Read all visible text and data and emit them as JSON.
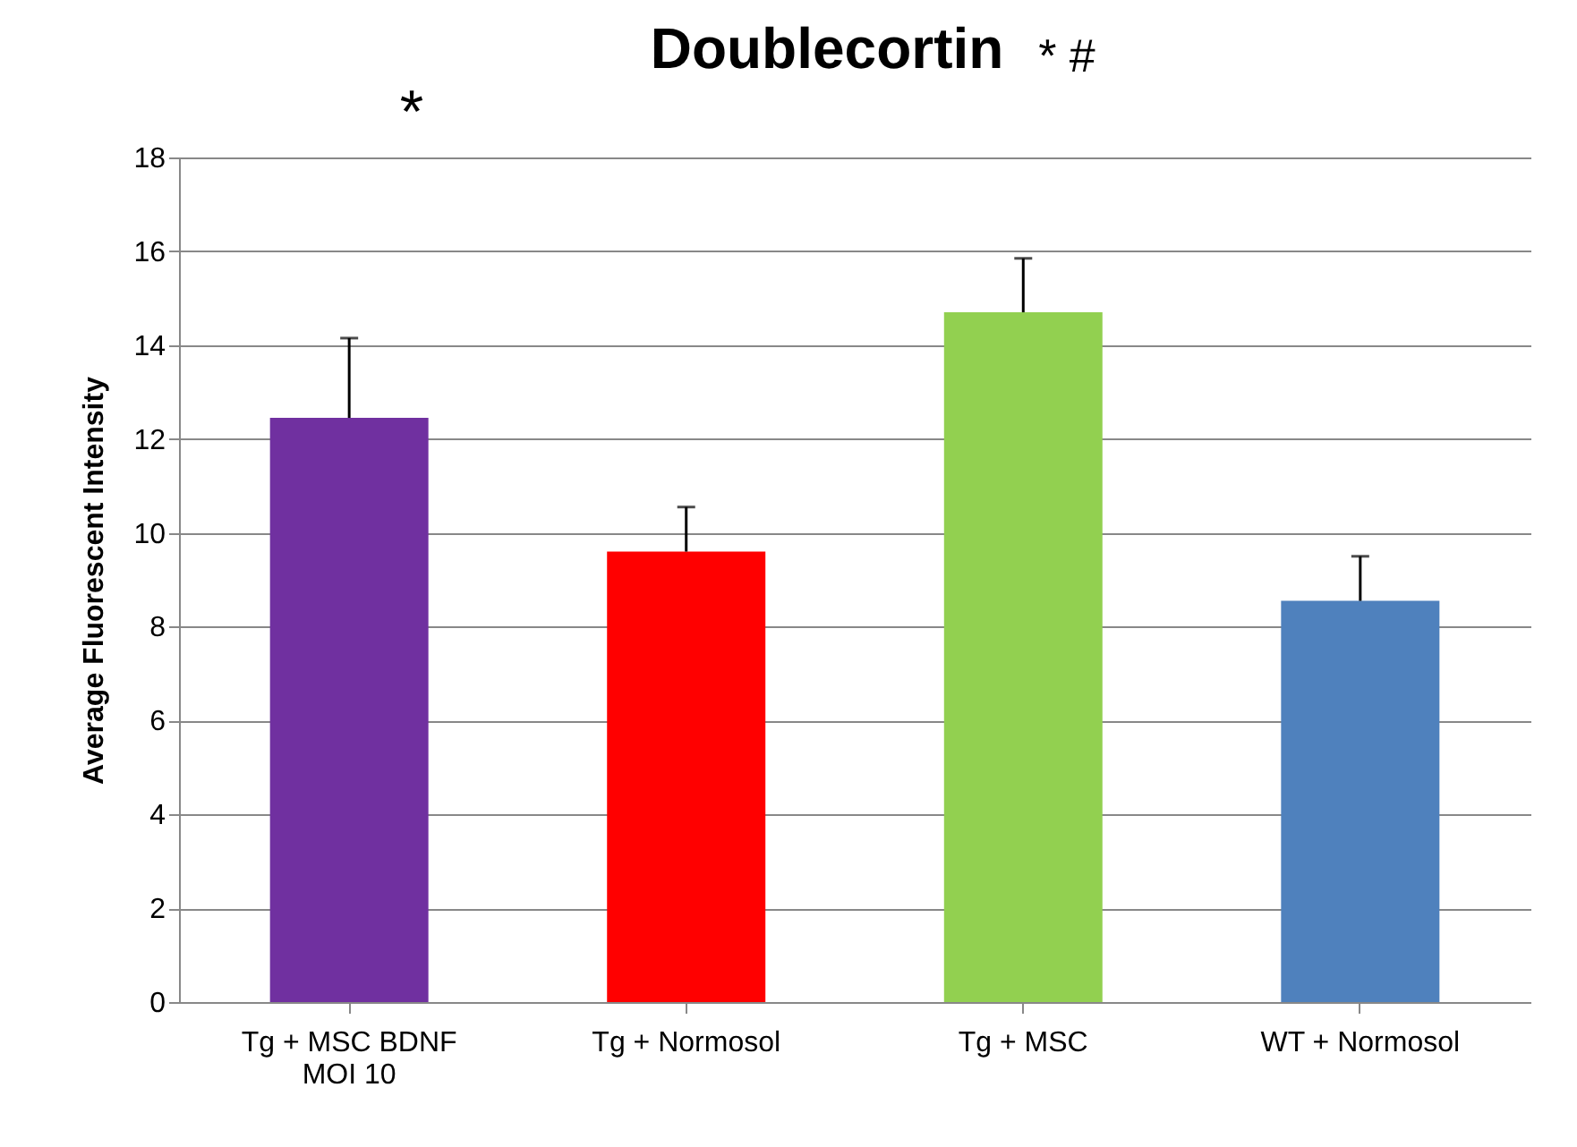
{
  "chart_data": {
    "type": "bar",
    "title": "Doublecortin",
    "ylabel": "Average Fluorescent Intensity",
    "categories": [
      "Tg + MSC BDNF MOI 10",
      "Tg + Normosol",
      "Tg + MSC",
      "WT + Normosol"
    ],
    "values": [
      12.45,
      9.6,
      14.7,
      8.55
    ],
    "colors": [
      "#7030a0",
      "#ff0000",
      "#92d050",
      "#4f81bd"
    ],
    "errors": [
      [
        12.45,
        14.15
      ],
      [
        9.6,
        10.55
      ],
      [
        14.7,
        15.85
      ],
      [
        8.55,
        9.5
      ]
    ],
    "ylim": [
      0,
      18
    ],
    "yticks": [
      0,
      2,
      4,
      6,
      8,
      10,
      12,
      14,
      16,
      18
    ],
    "grid": "y",
    "annotations": [
      "*",
      "* #"
    ]
  }
}
